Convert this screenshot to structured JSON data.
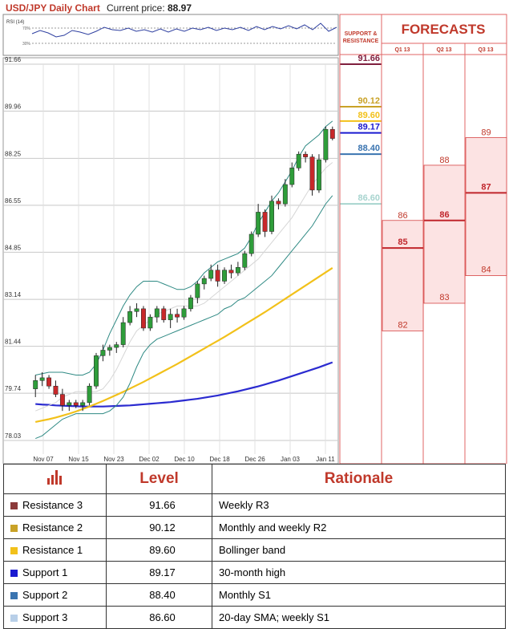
{
  "header": {
    "title": "USD/JPY Daily Chart",
    "price_label": "Current price:",
    "price_value": "88.97"
  },
  "rsi": {
    "label": "RSI (14)",
    "levels": [
      "70%",
      "30%"
    ]
  },
  "chart_data": [
    {
      "type": "candlestick",
      "title": "USD/JPY Daily Chart",
      "ylim": [
        78.03,
        91.66
      ],
      "y_ticks": [
        91.66,
        89.96,
        88.25,
        86.55,
        84.85,
        83.14,
        81.44,
        79.74,
        78.03
      ],
      "x_tick_labels": [
        "Nov 07",
        "Nov 15",
        "Nov 23",
        "Dec 02",
        "Dec 10",
        "Dec 18",
        "Dec 26",
        "Jan 03",
        "Jan 11"
      ],
      "candles": [
        {
          "o": 79.9,
          "h": 80.4,
          "l": 79.6,
          "c": 80.2
        },
        {
          "o": 80.2,
          "h": 80.5,
          "l": 80.0,
          "c": 80.3
        },
        {
          "o": 80.3,
          "h": 80.4,
          "l": 79.9,
          "c": 80.0
        },
        {
          "o": 80.0,
          "h": 80.2,
          "l": 79.6,
          "c": 79.7
        },
        {
          "o": 79.7,
          "h": 79.9,
          "l": 79.1,
          "c": 79.3
        },
        {
          "o": 79.3,
          "h": 79.5,
          "l": 79.1,
          "c": 79.4
        },
        {
          "o": 79.4,
          "h": 79.5,
          "l": 79.2,
          "c": 79.3
        },
        {
          "o": 79.3,
          "h": 79.5,
          "l": 79.1,
          "c": 79.4
        },
        {
          "o": 79.4,
          "h": 80.1,
          "l": 79.3,
          "c": 80.0
        },
        {
          "o": 80.0,
          "h": 81.2,
          "l": 79.9,
          "c": 81.1
        },
        {
          "o": 81.1,
          "h": 81.5,
          "l": 80.9,
          "c": 81.3
        },
        {
          "o": 81.3,
          "h": 81.5,
          "l": 81.1,
          "c": 81.4
        },
        {
          "o": 81.4,
          "h": 81.6,
          "l": 81.2,
          "c": 81.5
        },
        {
          "o": 81.5,
          "h": 82.5,
          "l": 81.4,
          "c": 82.3
        },
        {
          "o": 82.3,
          "h": 82.9,
          "l": 82.2,
          "c": 82.7
        },
        {
          "o": 82.7,
          "h": 83.0,
          "l": 82.5,
          "c": 82.8
        },
        {
          "o": 82.8,
          "h": 82.9,
          "l": 82.0,
          "c": 82.1
        },
        {
          "o": 82.1,
          "h": 82.6,
          "l": 82.0,
          "c": 82.5
        },
        {
          "o": 82.5,
          "h": 82.9,
          "l": 82.3,
          "c": 82.8
        },
        {
          "o": 82.8,
          "h": 82.9,
          "l": 82.3,
          "c": 82.4
        },
        {
          "o": 82.4,
          "h": 82.8,
          "l": 82.1,
          "c": 82.6
        },
        {
          "o": 82.6,
          "h": 82.8,
          "l": 82.3,
          "c": 82.5
        },
        {
          "o": 82.5,
          "h": 82.9,
          "l": 82.4,
          "c": 82.8
        },
        {
          "o": 82.8,
          "h": 83.3,
          "l": 82.7,
          "c": 83.2
        },
        {
          "o": 83.2,
          "h": 83.8,
          "l": 83.0,
          "c": 83.7
        },
        {
          "o": 83.7,
          "h": 84.0,
          "l": 83.5,
          "c": 83.9
        },
        {
          "o": 83.9,
          "h": 84.4,
          "l": 83.8,
          "c": 84.2
        },
        {
          "o": 84.2,
          "h": 84.4,
          "l": 83.6,
          "c": 83.8
        },
        {
          "o": 83.8,
          "h": 84.3,
          "l": 83.7,
          "c": 84.2
        },
        {
          "o": 84.2,
          "h": 84.4,
          "l": 83.9,
          "c": 84.1
        },
        {
          "o": 84.1,
          "h": 84.5,
          "l": 84.0,
          "c": 84.3
        },
        {
          "o": 84.3,
          "h": 84.9,
          "l": 84.2,
          "c": 84.8
        },
        {
          "o": 84.8,
          "h": 85.6,
          "l": 84.7,
          "c": 85.5
        },
        {
          "o": 85.5,
          "h": 86.6,
          "l": 85.4,
          "c": 86.3
        },
        {
          "o": 86.3,
          "h": 86.4,
          "l": 85.4,
          "c": 85.6
        },
        {
          "o": 85.6,
          "h": 86.9,
          "l": 85.5,
          "c": 86.7
        },
        {
          "o": 86.7,
          "h": 86.8,
          "l": 86.4,
          "c": 86.6
        },
        {
          "o": 86.6,
          "h": 87.5,
          "l": 86.5,
          "c": 87.3
        },
        {
          "o": 87.3,
          "h": 88.1,
          "l": 87.2,
          "c": 87.9
        },
        {
          "o": 87.9,
          "h": 88.5,
          "l": 87.8,
          "c": 88.4
        },
        {
          "o": 88.4,
          "h": 88.5,
          "l": 88.1,
          "c": 88.3
        },
        {
          "o": 88.3,
          "h": 88.4,
          "l": 86.9,
          "c": 87.1
        },
        {
          "o": 87.1,
          "h": 88.4,
          "l": 87.0,
          "c": 88.2
        },
        {
          "o": 88.2,
          "h": 89.4,
          "l": 88.1,
          "c": 89.3
        },
        {
          "o": 89.3,
          "h": 89.4,
          "l": 88.9,
          "c": 88.97
        }
      ],
      "lines": [
        {
          "color": "#2b2bd0",
          "values": [
            79.35,
            79.33,
            79.32,
            79.3,
            79.29,
            79.28,
            79.27,
            79.26,
            79.26,
            79.26,
            79.26,
            79.27,
            79.28,
            79.29,
            79.3,
            79.32,
            79.34,
            79.36,
            79.38,
            79.4,
            79.42,
            79.45,
            79.48,
            79.51,
            79.54,
            79.58,
            79.62,
            79.66,
            79.71,
            79.76,
            79.81,
            79.87,
            79.93,
            79.99,
            80.06,
            80.13,
            80.2,
            80.28,
            80.36,
            80.44,
            80.52,
            80.6,
            80.68,
            80.77,
            80.86
          ]
        },
        {
          "color": "#f2c11a",
          "values": [
            78.7,
            78.75,
            78.8,
            78.86,
            78.93,
            79.0,
            79.08,
            79.17,
            79.26,
            79.36,
            79.46,
            79.57,
            79.68,
            79.79,
            79.91,
            80.03,
            80.15,
            80.28,
            80.41,
            80.54,
            80.67,
            80.8,
            80.94,
            81.08,
            81.22,
            81.36,
            81.5,
            81.64,
            81.78,
            81.93,
            82.08,
            82.23,
            82.38,
            82.53,
            82.68,
            82.84,
            83.0,
            83.16,
            83.32,
            83.48,
            83.64,
            83.8,
            83.96,
            84.12,
            84.28
          ]
        },
        {
          "color": "#2f8a84",
          "values": [
            80.4,
            80.45,
            80.5,
            80.5,
            80.5,
            80.45,
            80.4,
            80.4,
            80.5,
            80.8,
            81.3,
            81.9,
            82.4,
            82.9,
            83.3,
            83.6,
            83.8,
            83.8,
            83.8,
            83.7,
            83.6,
            83.5,
            83.5,
            83.6,
            83.8,
            84.1,
            84.3,
            84.5,
            84.6,
            84.7,
            84.8,
            85.0,
            85.4,
            85.9,
            86.3,
            86.7,
            87.0,
            87.4,
            87.8,
            88.3,
            88.7,
            88.9,
            89.1,
            89.4,
            89.6
          ]
        },
        {
          "color": "#2f8a84",
          "values": [
            78.1,
            78.2,
            78.4,
            78.6,
            78.8,
            78.9,
            79.0,
            79.0,
            79.0,
            79.0,
            79.0,
            79.1,
            79.3,
            79.6,
            80.1,
            80.7,
            81.2,
            81.5,
            81.7,
            81.8,
            81.9,
            82.0,
            82.1,
            82.2,
            82.3,
            82.4,
            82.5,
            82.6,
            82.8,
            82.9,
            83.1,
            83.2,
            83.4,
            83.6,
            83.8,
            84.0,
            84.3,
            84.6,
            84.9,
            85.2,
            85.5,
            85.8,
            86.2,
            86.6,
            86.9
          ]
        },
        {
          "color": "#d6d6d6",
          "values": [
            79.1,
            79.2,
            79.3,
            79.4,
            79.6,
            79.7,
            79.8,
            79.8,
            79.8,
            79.8,
            79.9,
            80.2,
            80.6,
            81.1,
            81.6,
            82.0,
            82.2,
            82.4,
            82.6,
            82.7,
            82.8,
            82.9,
            82.9,
            82.9,
            82.9,
            83.0,
            83.2,
            83.4,
            83.6,
            83.8,
            84.0,
            84.2,
            84.4,
            84.6,
            84.9,
            85.2,
            85.5,
            85.8,
            86.1,
            86.5,
            86.9,
            87.3,
            87.6,
            87.9,
            88.1
          ]
        }
      ],
      "support_resistance": [
        {
          "label": "91.66",
          "value": 91.66,
          "color": "#7f1f3e"
        },
        {
          "label": "90.12",
          "value": 90.12,
          "color": "#c9a227"
        },
        {
          "label": "89.60",
          "value": 89.6,
          "color": "#f2c11a"
        },
        {
          "label": "89.17",
          "value": 89.17,
          "color": "#1a1ad0"
        },
        {
          "label": "88.40",
          "value": 88.4,
          "color": "#3a74b0"
        },
        {
          "label": "86.60",
          "value": 86.6,
          "color": "#a8d4cf"
        }
      ]
    },
    {
      "type": "bar",
      "title": "FORECASTS",
      "sr_header": [
        "SUPPORT &",
        "RESISTANCE"
      ],
      "categories": [
        "Q1 13",
        "Q2 13",
        "Q3 13"
      ],
      "ranges": [
        {
          "high": 86,
          "mid": 85,
          "low": 82
        },
        {
          "high": 88,
          "mid": 86,
          "low": 83
        },
        {
          "high": 89,
          "mid": 87,
          "low": 84
        }
      ]
    }
  ],
  "table": {
    "header": [
      "Level",
      "Rationale"
    ],
    "rows": [
      {
        "name": "Resistance 3",
        "level": "91.66",
        "rationale": "Weekly R3",
        "color": "#8b3a3a"
      },
      {
        "name": "Resistance 2",
        "level": "90.12",
        "rationale": "Monthly and weekly R2",
        "color": "#c9a227"
      },
      {
        "name": "Resistance 1",
        "level": "89.60",
        "rationale": "Bollinger band",
        "color": "#f2c11a"
      },
      {
        "name": "Support 1",
        "level": "89.17",
        "rationale": "30-month high",
        "color": "#1a1ad0"
      },
      {
        "name": "Support 2",
        "level": "88.40",
        "rationale": "Monthly S1",
        "color": "#3a74b0"
      },
      {
        "name": "Support 3",
        "level": "86.60",
        "rationale": "20-day SMA; weekly S1",
        "color": "#b8cfe8"
      }
    ]
  }
}
